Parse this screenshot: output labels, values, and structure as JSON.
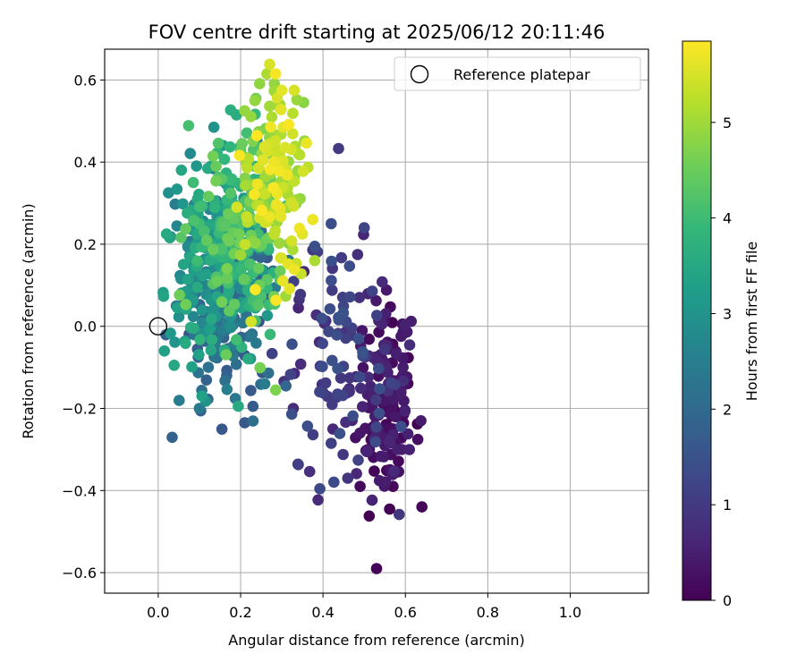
{
  "chart_data": {
    "type": "scatter",
    "title": "FOV centre drift starting at 2025/06/12 20:11:46",
    "xlabel": "Angular distance from reference (arcmin)",
    "ylabel": "Rotation from reference (arcmin)",
    "xlim": [
      -0.13,
      1.19
    ],
    "ylim": [
      -0.65,
      0.675
    ],
    "xticks": [
      0.0,
      0.2,
      0.4,
      0.6,
      0.8,
      1.0
    ],
    "xtick_labels": [
      "0.0",
      "0.2",
      "0.4",
      "0.6",
      "0.8",
      "1.0"
    ],
    "yticks": [
      -0.6,
      -0.4,
      -0.2,
      0.0,
      0.2,
      0.4,
      0.6
    ],
    "ytick_labels": [
      "−0.6",
      "−0.4",
      "−0.2",
      "0.0",
      "0.2",
      "0.4",
      "0.6"
    ],
    "grid": true,
    "colormap": "viridis",
    "colorbar": {
      "label": "Hours from first FF file",
      "range": [
        0,
        5.85
      ],
      "ticks": [
        0,
        1,
        2,
        3,
        4,
        5
      ],
      "tick_labels": [
        "0",
        "1",
        "2",
        "3",
        "4",
        "5"
      ]
    },
    "legend": {
      "position": "top-right",
      "label": "Reference platepar"
    },
    "reference_point": {
      "x": 0.0,
      "y": 0.0
    },
    "clusters": [
      {
        "hours": [
          0.0,
          0.6
        ],
        "cx": 0.555,
        "cy": -0.17,
        "sx": 0.035,
        "sy": 0.12,
        "count": 150
      },
      {
        "hours": [
          0.6,
          1.5
        ],
        "cx": 0.45,
        "cy": -0.1,
        "sx": 0.06,
        "sy": 0.14,
        "count": 110
      },
      {
        "hours": [
          1.5,
          2.5
        ],
        "cx": 0.17,
        "cy": 0.06,
        "sx": 0.06,
        "sy": 0.13,
        "count": 150
      },
      {
        "hours": [
          2.5,
          3.6
        ],
        "cx": 0.125,
        "cy": 0.16,
        "sx": 0.05,
        "sy": 0.12,
        "count": 200
      },
      {
        "hours": [
          3.6,
          4.6
        ],
        "cx": 0.19,
        "cy": 0.22,
        "sx": 0.055,
        "sy": 0.13,
        "count": 170
      },
      {
        "hours": [
          4.6,
          5.85
        ],
        "cx": 0.28,
        "cy": 0.35,
        "sx": 0.04,
        "sy": 0.12,
        "count": 150
      }
    ],
    "points": [
      {
        "x": 0.53,
        "y": -0.59,
        "hours": 0.05
      },
      {
        "x": 0.64,
        "y": -0.44,
        "hours": 0.08
      },
      {
        "x": 0.49,
        "y": -0.39,
        "hours": 0.15
      },
      {
        "x": 0.57,
        "y": -0.39,
        "hours": 0.12
      },
      {
        "x": 0.58,
        "y": -0.355,
        "hours": 0.1
      },
      {
        "x": 0.5,
        "y": 0.24,
        "hours": 1.25
      },
      {
        "x": 0.42,
        "y": 0.25,
        "hours": 1.4
      },
      {
        "x": 0.46,
        "y": -0.37,
        "hours": 0.9
      },
      {
        "x": 0.42,
        "y": -0.285,
        "hours": 1.1
      },
      {
        "x": 0.21,
        "y": -0.235,
        "hours": 1.6
      },
      {
        "x": 0.23,
        "y": -0.195,
        "hours": 1.7
      },
      {
        "x": 0.1,
        "y": -0.2,
        "hours": 2.4
      },
      {
        "x": 0.285,
        "y": -0.155,
        "hours": 4.7
      },
      {
        "x": 0.31,
        "y": -0.145,
        "hours": 1.9
      },
      {
        "x": 0.015,
        "y": -0.06,
        "hours": 3.3
      },
      {
        "x": 0.025,
        "y": 0.325,
        "hours": 2.9
      },
      {
        "x": 0.285,
        "y": 0.615,
        "hours": 5.8
      },
      {
        "x": 0.3,
        "y": 0.575,
        "hours": 5.6
      },
      {
        "x": 0.33,
        "y": 0.575,
        "hours": 5.5
      },
      {
        "x": 0.19,
        "y": 0.515,
        "hours": 3.6
      },
      {
        "x": 0.21,
        "y": 0.525,
        "hours": 4.9
      },
      {
        "x": 0.135,
        "y": 0.485,
        "hours": 3.0
      },
      {
        "x": 0.38,
        "y": 0.195,
        "hours": 1.45
      },
      {
        "x": 0.38,
        "y": 0.16,
        "hours": 5.1
      },
      {
        "x": 0.375,
        "y": 0.26,
        "hours": 5.7
      },
      {
        "x": 0.35,
        "y": 0.225,
        "hours": 5.6
      }
    ]
  }
}
